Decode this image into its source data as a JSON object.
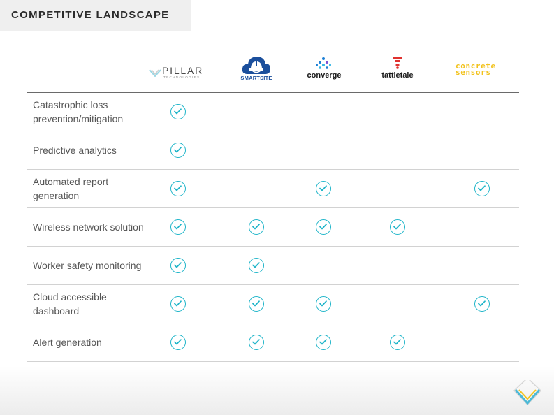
{
  "slide": {
    "title": "COMPETITIVE LANDSCAPE"
  },
  "logos": {
    "pillar": {
      "name": "PILLAR",
      "subtitle": "TECHNOLOGIES"
    },
    "smartsite": {
      "name": "SMARTSITE"
    },
    "converge": {
      "name": "converge"
    },
    "tattletale": {
      "name": "tattletale"
    },
    "concrete_sensors": {
      "line1": "concrete",
      "line2": "sensors"
    }
  },
  "columns": [
    "pillar",
    "smartsite",
    "converge",
    "tattletale",
    "concrete_sensors"
  ],
  "rows": [
    {
      "label": "Catastrophic loss prevention/mitigation",
      "checks": [
        true,
        false,
        false,
        false,
        false
      ]
    },
    {
      "label": "Predictive analytics",
      "checks": [
        true,
        false,
        false,
        false,
        false
      ]
    },
    {
      "label": "Automated report generation",
      "checks": [
        true,
        false,
        true,
        false,
        true
      ]
    },
    {
      "label": "Wireless network solution",
      "checks": [
        true,
        true,
        true,
        true,
        false
      ]
    },
    {
      "label": "Worker safety monitoring",
      "checks": [
        true,
        true,
        false,
        false,
        false
      ]
    },
    {
      "label": "Cloud accessible dashboard",
      "checks": [
        true,
        true,
        true,
        false,
        true
      ]
    },
    {
      "label": "Alert generation",
      "checks": [
        true,
        true,
        true,
        true,
        false
      ]
    }
  ],
  "colors": {
    "check": "#1fb5c9",
    "concrete_yellow": "#f2c21b",
    "smartsite_blue": "#1b4f9c",
    "tattletale_red": "#e0322f",
    "converge_blue": "#1c7fd6"
  }
}
